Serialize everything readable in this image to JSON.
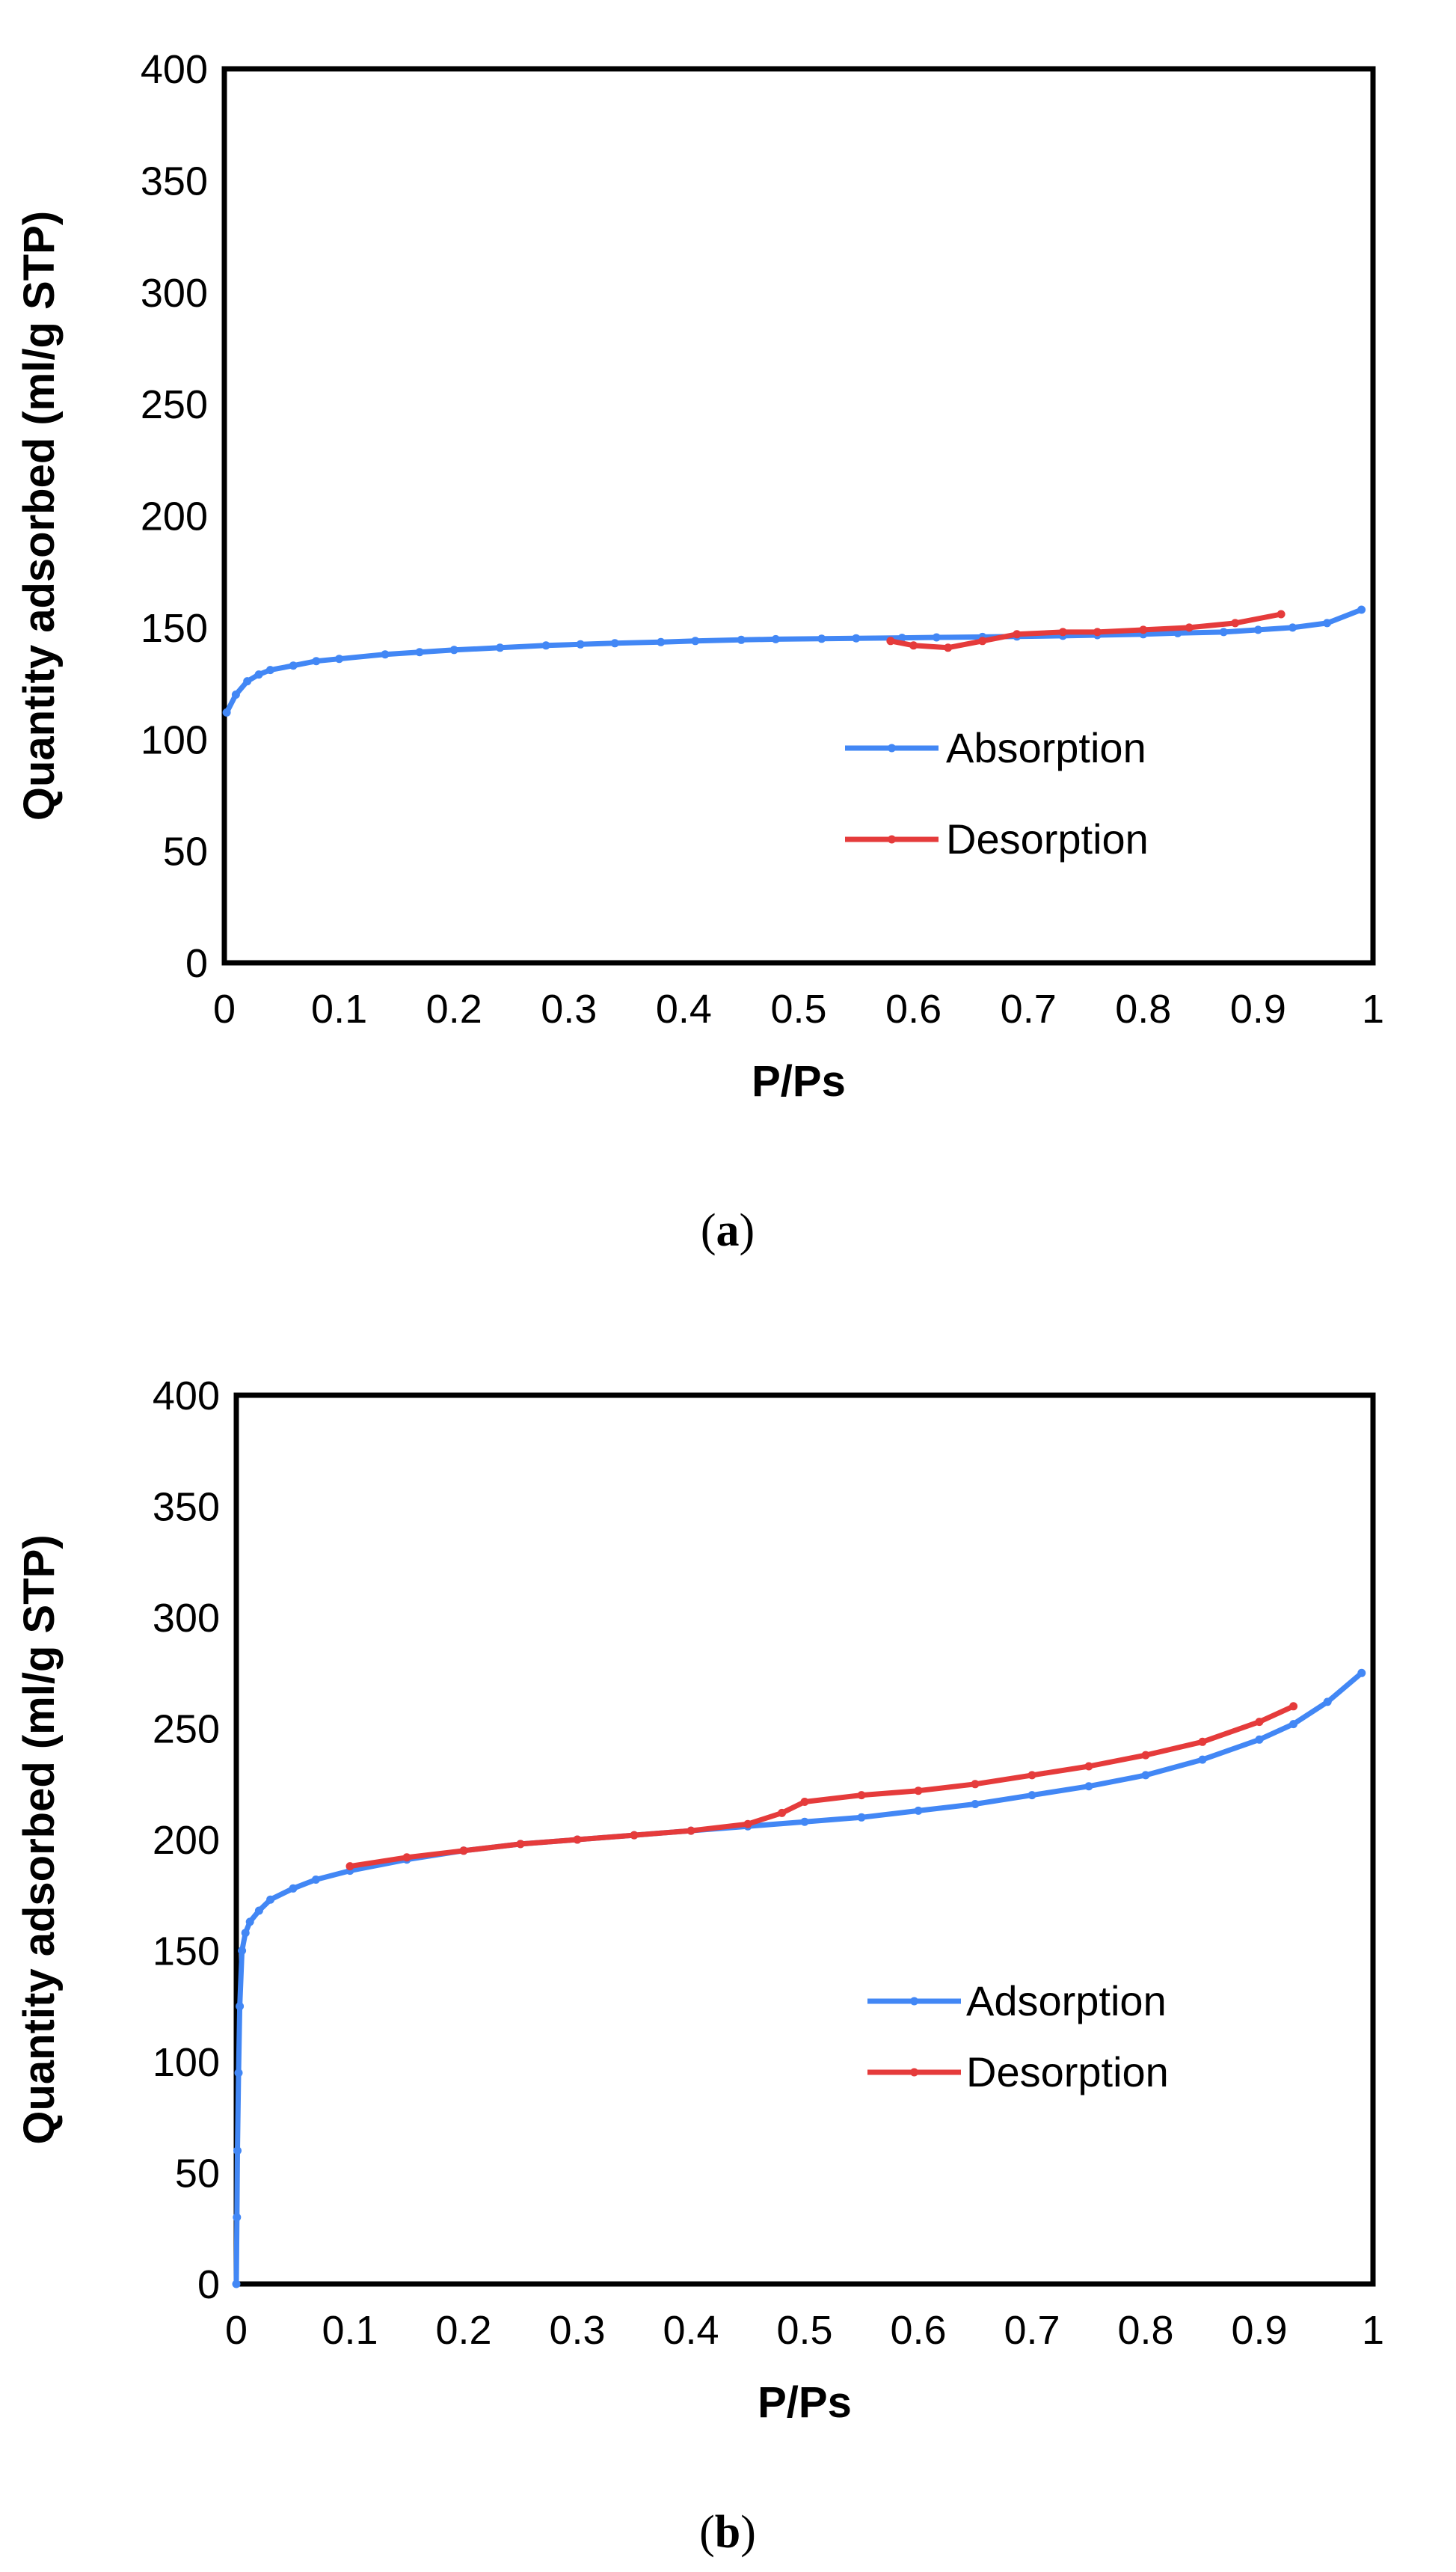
{
  "chart_data": [
    {
      "type": "line",
      "caption_open": "(",
      "caption_letter": "a",
      "caption_close": ")",
      "title": "",
      "xlabel": "P/Ps",
      "ylabel": "Quantity adsorbed (ml/g STP)",
      "xlim": [
        0,
        1
      ],
      "ylim": [
        0,
        400
      ],
      "xticks": [
        "0",
        "0.1",
        "0.2",
        "0.3",
        "0.4",
        "0.5",
        "0.6",
        "0.7",
        "0.8",
        "0.9",
        "1"
      ],
      "yticks": [
        "0",
        "50",
        "100",
        "150",
        "200",
        "250",
        "300",
        "350",
        "400"
      ],
      "legend_position": "lower-right",
      "series": [
        {
          "name": "Absorption",
          "color": "#4287f5",
          "x": [
            0.002,
            0.01,
            0.02,
            0.03,
            0.04,
            0.06,
            0.08,
            0.1,
            0.14,
            0.17,
            0.2,
            0.24,
            0.28,
            0.31,
            0.34,
            0.38,
            0.41,
            0.45,
            0.48,
            0.52,
            0.55,
            0.59,
            0.62,
            0.66,
            0.69,
            0.73,
            0.76,
            0.8,
            0.83,
            0.87,
            0.9,
            0.93,
            0.96,
            0.99
          ],
          "y": [
            112,
            120,
            126,
            129,
            131,
            133,
            135,
            136,
            138,
            139,
            140,
            141,
            142,
            142.5,
            143,
            143.5,
            144,
            144.5,
            144.8,
            145,
            145.2,
            145.4,
            145.6,
            145.8,
            146,
            146.3,
            146.6,
            147,
            147.5,
            148,
            149,
            150,
            152,
            158
          ]
        },
        {
          "name": "Desorption",
          "color": "#e53b3b",
          "x": [
            0.58,
            0.6,
            0.63,
            0.66,
            0.69,
            0.73,
            0.76,
            0.8,
            0.84,
            0.88,
            0.92
          ],
          "y": [
            144,
            142,
            141,
            144,
            147,
            148,
            148,
            149,
            150,
            152,
            156
          ]
        }
      ]
    },
    {
      "type": "line",
      "caption_open": "(",
      "caption_letter": "b",
      "caption_close": ")",
      "title": "",
      "xlabel": "P/Ps",
      "ylabel": "Quantity adsorbed (ml/g STP)",
      "xlim": [
        0,
        1
      ],
      "ylim": [
        0,
        400
      ],
      "xticks": [
        "0",
        "0.1",
        "0.2",
        "0.3",
        "0.4",
        "0.5",
        "0.6",
        "0.7",
        "0.8",
        "0.9",
        "1"
      ],
      "yticks": [
        "0",
        "50",
        "100",
        "150",
        "200",
        "250",
        "300",
        "350",
        "400"
      ],
      "legend_position": "lower-right",
      "series": [
        {
          "name": "Adsorption",
          "color": "#4287f5",
          "x": [
            0.0,
            0.0005,
            0.001,
            0.002,
            0.003,
            0.005,
            0.008,
            0.012,
            0.02,
            0.03,
            0.05,
            0.07,
            0.1,
            0.15,
            0.2,
            0.25,
            0.3,
            0.35,
            0.4,
            0.45,
            0.5,
            0.55,
            0.6,
            0.65,
            0.7,
            0.75,
            0.8,
            0.85,
            0.9,
            0.93,
            0.96,
            0.99
          ],
          "y": [
            0,
            30,
            60,
            95,
            125,
            150,
            158,
            163,
            168,
            173,
            178,
            182,
            186,
            191,
            195,
            198,
            200,
            202,
            204,
            206,
            208,
            210,
            213,
            216,
            220,
            224,
            229,
            236,
            245,
            252,
            262,
            275
          ]
        },
        {
          "name": "Desorption",
          "color": "#e53b3b",
          "x": [
            0.1,
            0.15,
            0.2,
            0.25,
            0.3,
            0.35,
            0.4,
            0.45,
            0.48,
            0.5,
            0.55,
            0.6,
            0.65,
            0.7,
            0.75,
            0.8,
            0.85,
            0.9,
            0.93
          ],
          "y": [
            188,
            192,
            195,
            198,
            200,
            202,
            204,
            207,
            212,
            217,
            220,
            222,
            225,
            229,
            233,
            238,
            244,
            253,
            260
          ]
        }
      ]
    }
  ]
}
